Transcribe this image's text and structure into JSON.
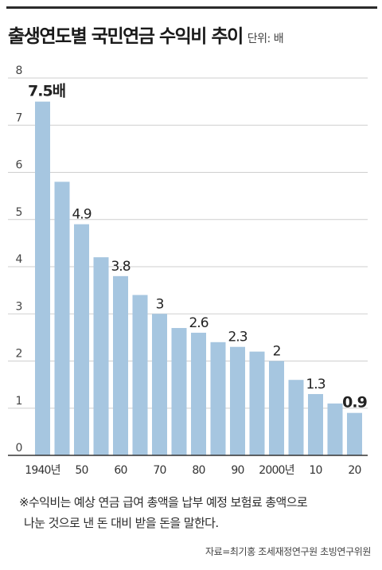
{
  "header": {
    "title": "출생연도별 국민연금 수익비 추이",
    "unit": "단위: 배"
  },
  "chart_data": {
    "type": "bar",
    "title": "출생연도별 국민연금 수익비 추이",
    "unit": "단위: 배",
    "ylim": [
      0,
      8
    ],
    "y_ticks": [
      "0",
      "1",
      "2",
      "3",
      "4",
      "5",
      "6",
      "7",
      "8"
    ],
    "grid": true,
    "bar_color": "#a6c6e0",
    "x_tick_labels": [
      {
        "index": 0,
        "label": "1940년"
      },
      {
        "index": 2,
        "label": "50"
      },
      {
        "index": 4,
        "label": "60"
      },
      {
        "index": 6,
        "label": "70"
      },
      {
        "index": 8,
        "label": "80"
      },
      {
        "index": 10,
        "label": "90"
      },
      {
        "index": 12,
        "label": "2000년"
      },
      {
        "index": 14,
        "label": "10"
      },
      {
        "index": 16,
        "label": "20"
      }
    ],
    "values": [
      7.5,
      5.8,
      4.9,
      4.2,
      3.8,
      3.4,
      3.0,
      2.7,
      2.6,
      2.4,
      2.3,
      2.2,
      2.0,
      1.6,
      1.3,
      1.1,
      0.9
    ],
    "data_labels": [
      {
        "index": 0,
        "text": "7.5배",
        "bold": true
      },
      {
        "index": 2,
        "text": "4.9",
        "bold": false
      },
      {
        "index": 4,
        "text": "3.8",
        "bold": false
      },
      {
        "index": 6,
        "text": "3",
        "bold": false
      },
      {
        "index": 8,
        "text": "2.6",
        "bold": false
      },
      {
        "index": 10,
        "text": "2.3",
        "bold": false
      },
      {
        "index": 12,
        "text": "2",
        "bold": false
      },
      {
        "index": 14,
        "text": "1.3",
        "bold": false
      },
      {
        "index": 16,
        "text": "0.9",
        "bold": true
      }
    ]
  },
  "footnote": {
    "line1": "※수익비는 예상 연금 급여 총액을 납부 예정 보험료 총액으로",
    "line2": "나눈 것으로 낸 돈 대비 받을 돈을 말한다."
  },
  "source": "자료=최기홍 조세재정연구원 초빙연구위원"
}
